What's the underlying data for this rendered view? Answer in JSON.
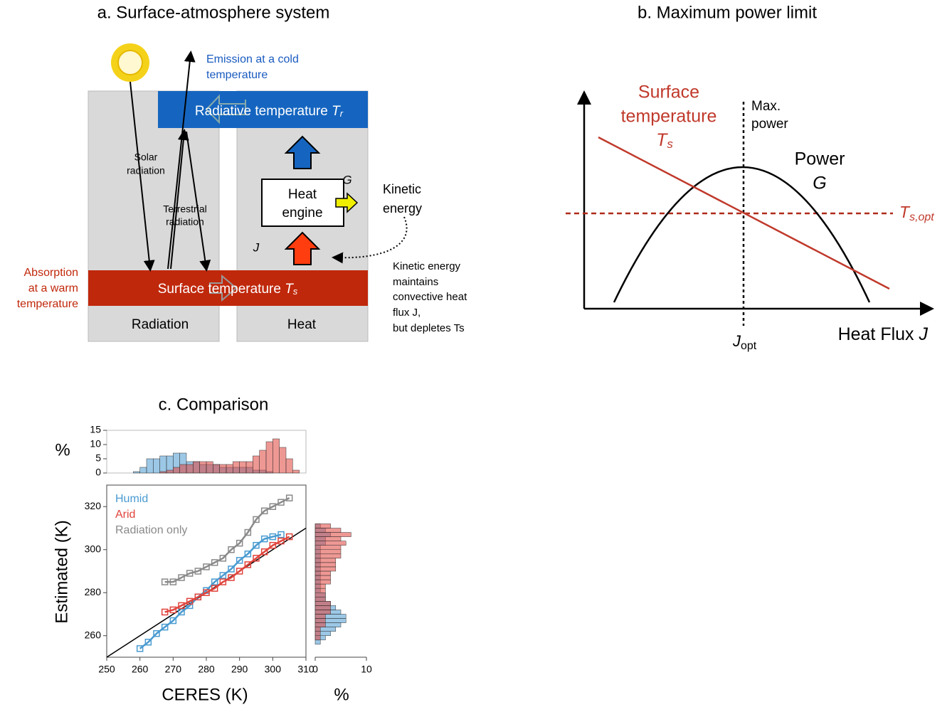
{
  "panel_a": {
    "title": "a. Surface-atmosphere system",
    "emission": [
      "Emission at a cold",
      "temperature"
    ],
    "radiative": {
      "label": "Radiative temperature ",
      "symbol": "T",
      "sub": "r"
    },
    "solar": [
      "Solar",
      "radiation"
    ],
    "terrestrial": [
      "Terrestrial",
      "radiation"
    ],
    "engine": [
      "Heat",
      "engine"
    ],
    "power_symbol": "G",
    "flux_symbol": "J",
    "kinetic": [
      "Kinetic",
      "energy"
    ],
    "absorption": [
      "Absorption",
      "at a warm",
      "temperature"
    ],
    "surface": {
      "label": "Surface temperature ",
      "symbol": "T",
      "sub": "s"
    },
    "radiation_col": "Radiation",
    "heat_col": "Heat",
    "note": [
      "Kinetic energy",
      "maintains",
      "convective heat",
      "flux J,",
      "but depletes Ts"
    ]
  },
  "panel_b": {
    "title": "b. Maximum power limit",
    "surface": [
      "Surface",
      "temperature"
    ],
    "surface_symbol": {
      "symbol": "T",
      "sub": "s"
    },
    "max_power": [
      "Max.",
      "power"
    ],
    "power": "Power",
    "power_symbol": "G",
    "ts_opt": {
      "symbol": "T",
      "sub": "s,opt"
    },
    "j_opt": {
      "symbol": "J",
      "sub": "opt"
    },
    "x_label": {
      "label": "Heat Flux ",
      "symbol": "J"
    }
  },
  "chart_data": [
    {
      "type": "line",
      "title": "c. Comparison",
      "x_label": "CERES (K)",
      "y_label": "Estimated (K)",
      "xlim": [
        250,
        310
      ],
      "ylim": [
        250,
        330
      ],
      "xticks": [
        250,
        260,
        270,
        280,
        290,
        300,
        310
      ],
      "yticks": [
        260,
        280,
        300,
        320
      ],
      "series": [
        {
          "name": "Humid",
          "color": "#4a9bd1",
          "x": [
            260,
            262.5,
            265,
            267.5,
            270,
            272.5,
            275,
            277.5,
            280,
            282.5,
            285,
            287.5,
            290,
            292.5,
            295,
            297.5,
            300,
            302.5
          ],
          "values": [
            254,
            257,
            261,
            264,
            267,
            271,
            274,
            278,
            281,
            285,
            288,
            291,
            295,
            298,
            302,
            305,
            306,
            307
          ]
        },
        {
          "name": "Arid",
          "color": "#e0443c",
          "x": [
            267.5,
            270,
            272.5,
            275,
            277.5,
            280,
            282.5,
            285,
            287.5,
            290,
            292.5,
            295,
            297.5,
            300,
            302.5,
            305
          ],
          "values": [
            271,
            272,
            274,
            276,
            278,
            280,
            282,
            285,
            287,
            290,
            293,
            296,
            299,
            302,
            304,
            306
          ]
        },
        {
          "name": "Radiation only",
          "color": "#8a8a8a",
          "x": [
            267.5,
            270,
            272.5,
            275,
            277.5,
            280,
            282.5,
            285,
            287.5,
            290,
            292.5,
            295,
            297.5,
            300,
            302.5,
            305
          ],
          "values": [
            285,
            285,
            287,
            289,
            290,
            292,
            294,
            296,
            300,
            303,
            308,
            314,
            318,
            320,
            322,
            324
          ]
        }
      ]
    },
    {
      "type": "histogram",
      "y_label": "%",
      "xlim": [
        250,
        310
      ],
      "ylim": [
        0,
        15
      ],
      "yticks": [
        0,
        5,
        10,
        15
      ],
      "bins": [
        256,
        258,
        260,
        262,
        264,
        266,
        268,
        270,
        272,
        274,
        276,
        278,
        280,
        282,
        284,
        286,
        288,
        290,
        292,
        294,
        296,
        298,
        300,
        302,
        304,
        306,
        308
      ],
      "series": [
        {
          "name": "Humid",
          "color": "#4a9bd1",
          "values": [
            0,
            0.5,
            2,
            5,
            5,
            6,
            6,
            7,
            7,
            4,
            4,
            3,
            3,
            3,
            2,
            2,
            2,
            2,
            2,
            1,
            1,
            0.5,
            0,
            0,
            0,
            0
          ]
        },
        {
          "name": "Arid",
          "color": "#e0443c",
          "values": [
            0,
            0,
            0,
            0,
            0,
            0.5,
            1,
            2,
            3,
            3,
            4,
            4,
            4,
            3,
            3,
            3,
            4,
            4,
            4,
            6,
            8,
            11,
            12,
            9,
            5,
            1
          ]
        }
      ]
    },
    {
      "type": "histogram",
      "orientation": "horizontal",
      "x_label": "%",
      "xlim": [
        0,
        10
      ],
      "xticks": [
        0,
        10
      ],
      "ylim": [
        250,
        330
      ],
      "bins": [
        250,
        252,
        254,
        256,
        258,
        260,
        262,
        264,
        266,
        268,
        270,
        272,
        274,
        276,
        278,
        280,
        282,
        284,
        286,
        288,
        290,
        292,
        294,
        296,
        298,
        300,
        302,
        304,
        306,
        308,
        310,
        312,
        314
      ],
      "series": [
        {
          "name": "Humid",
          "color": "#4a9bd1",
          "values": [
            0,
            0,
            0,
            1,
            2,
            3,
            4,
            5,
            6,
            6,
            5,
            4,
            3,
            2,
            2,
            1,
            1,
            1,
            1,
            1,
            1,
            1,
            1,
            1,
            1,
            1,
            2,
            2,
            3,
            2,
            1,
            0
          ]
        },
        {
          "name": "Arid",
          "color": "#e0443c",
          "values": [
            0,
            0,
            0,
            0,
            1,
            1,
            1,
            2,
            2,
            2,
            3,
            3,
            3,
            2,
            2,
            2,
            2,
            3,
            3,
            3,
            4,
            4,
            4,
            5,
            5,
            5,
            6,
            5,
            7,
            5,
            3,
            0
          ]
        }
      ]
    }
  ]
}
